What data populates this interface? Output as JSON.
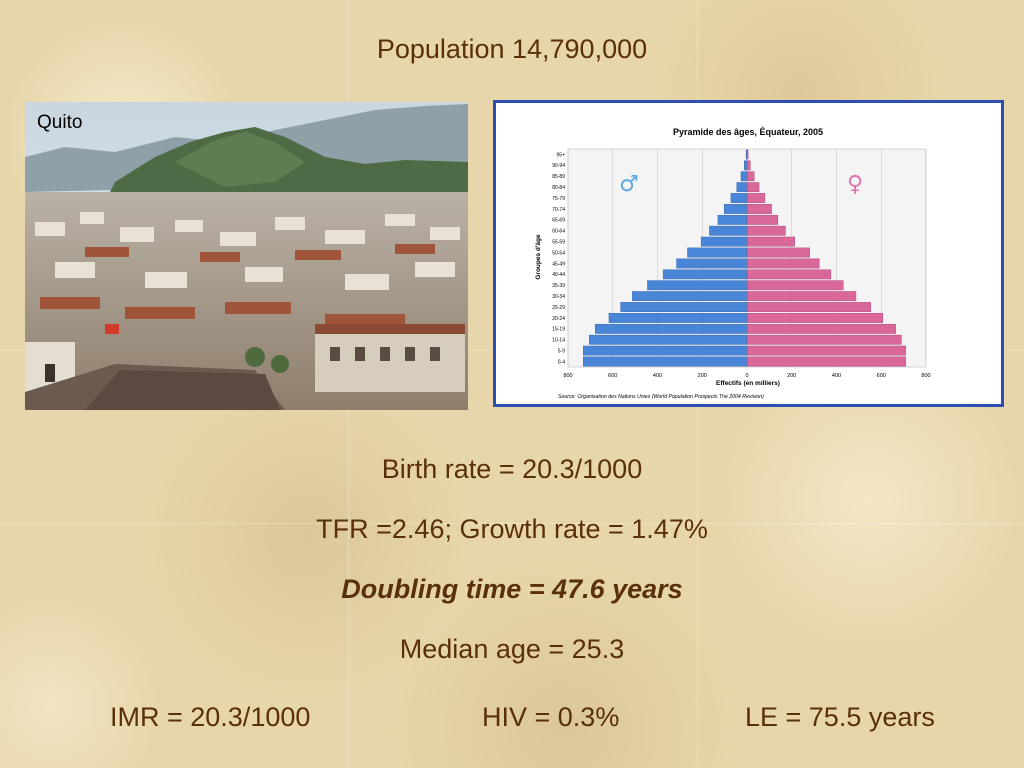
{
  "slide": {
    "population": "Population 14,790,000",
    "birth_rate": "Birth rate = 20.3/1000",
    "tfr_growth": "TFR =2.46;  Growth rate = 1.47%",
    "doubling_time": "Doubling time = 47.6 years",
    "median_age": "Median age = 25.3",
    "imr": "IMR = 20.3/1000",
    "hiv": "HIV = 0.3%",
    "le": "LE = 75.5 years"
  },
  "photo": {
    "label": "Quito"
  },
  "chart_data": {
    "type": "bar",
    "orientation": "horizontal-pyramid",
    "title": "Pyramide des âges, Équateur, 2005",
    "xlabel": "Effectifs (en milliers)",
    "ylabel": "Groupes d'âge",
    "source": "Source: Organisation des Nations Unies (World Population Prospects The 2004 Revision)",
    "xlim": [
      -800,
      800
    ],
    "x_ticks": [
      "800",
      "600",
      "400",
      "200",
      "0",
      "200",
      "400",
      "600",
      "800"
    ],
    "grid": true,
    "categories": [
      "0-4",
      "5-9",
      "10-14",
      "15-19",
      "20-24",
      "25-29",
      "30-34",
      "35-39",
      "40-44",
      "45-49",
      "50-54",
      "55-59",
      "60-64",
      "65-69",
      "70-74",
      "75-79",
      "80-84",
      "85-89",
      "90-94",
      "95+"
    ],
    "series": [
      {
        "name": "♂",
        "color": "#4a86d8",
        "values": [
          732,
          732,
          705,
          678,
          617,
          565,
          513,
          445,
          375,
          315,
          266,
          205,
          168,
          130,
          102,
          72,
          46,
          27,
          12,
          4
        ]
      },
      {
        "name": "♀",
        "color": "#d9679a",
        "values": [
          710,
          710,
          690,
          665,
          607,
          553,
          487,
          430,
          375,
          323,
          280,
          213,
          172,
          138,
          110,
          80,
          54,
          32,
          15,
          5
        ]
      }
    ]
  }
}
